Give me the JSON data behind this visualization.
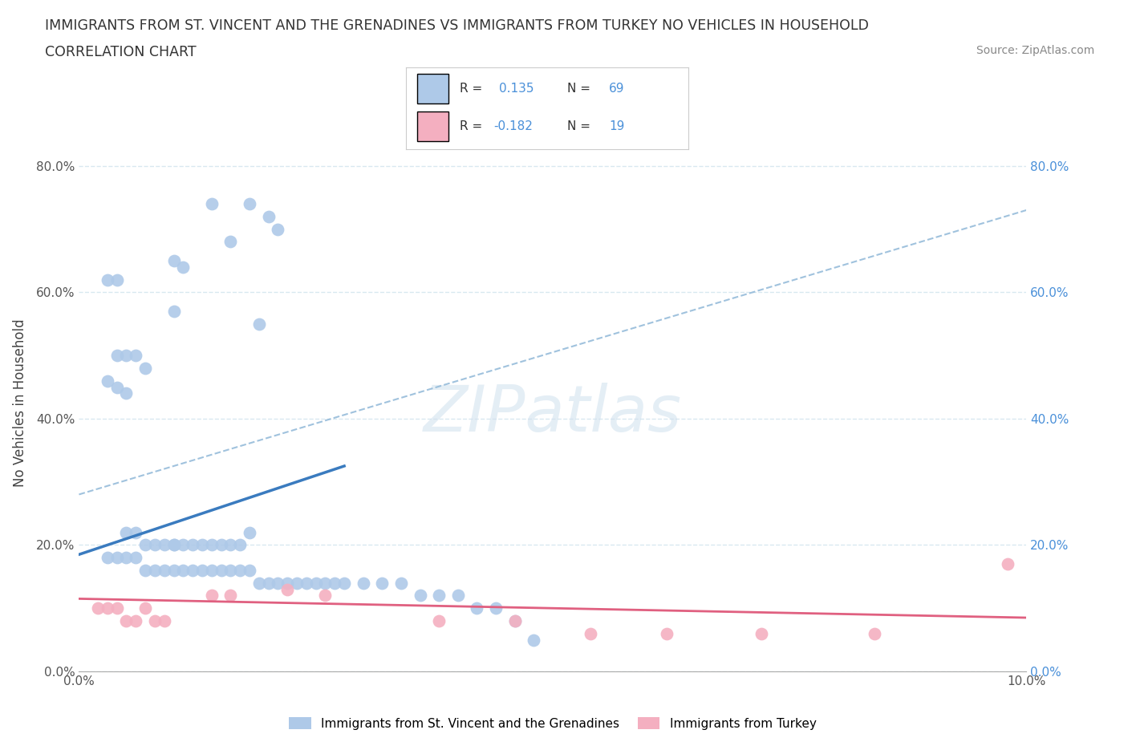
{
  "title_line1": "IMMIGRANTS FROM ST. VINCENT AND THE GRENADINES VS IMMIGRANTS FROM TURKEY NO VEHICLES IN HOUSEHOLD",
  "title_line2": "CORRELATION CHART",
  "source_text": "Source: ZipAtlas.com",
  "watermark": "ZIPatlas",
  "ylabel": "No Vehicles in Household",
  "xlim": [
    0.0,
    0.1
  ],
  "ylim": [
    0.0,
    0.85
  ],
  "blue_R": 0.135,
  "blue_N": 69,
  "pink_R": -0.182,
  "pink_N": 19,
  "blue_color": "#aec9e8",
  "pink_color": "#f4afc0",
  "blue_line_color": "#3a7bbf",
  "pink_line_color": "#e06080",
  "dash_line_color": "#90b8d8",
  "bg_color": "#ffffff",
  "grid_color": "#d8e8f0",
  "blue_scatter_x": [
    0.014,
    0.018,
    0.02,
    0.021,
    0.016,
    0.01,
    0.011,
    0.003,
    0.004,
    0.01,
    0.019,
    0.004,
    0.005,
    0.006,
    0.007,
    0.003,
    0.004,
    0.005,
    0.005,
    0.006,
    0.007,
    0.008,
    0.009,
    0.01,
    0.01,
    0.011,
    0.012,
    0.013,
    0.014,
    0.015,
    0.016,
    0.017,
    0.018,
    0.003,
    0.004,
    0.005,
    0.006,
    0.007,
    0.008,
    0.009,
    0.01,
    0.011,
    0.012,
    0.013,
    0.014,
    0.015,
    0.016,
    0.017,
    0.018,
    0.019,
    0.02,
    0.021,
    0.022,
    0.023,
    0.024,
    0.025,
    0.026,
    0.027,
    0.028,
    0.03,
    0.032,
    0.034,
    0.036,
    0.038,
    0.04,
    0.042,
    0.044,
    0.046,
    0.048
  ],
  "blue_scatter_y": [
    0.74,
    0.74,
    0.72,
    0.7,
    0.68,
    0.65,
    0.64,
    0.62,
    0.62,
    0.57,
    0.55,
    0.5,
    0.5,
    0.5,
    0.48,
    0.46,
    0.45,
    0.44,
    0.22,
    0.22,
    0.2,
    0.2,
    0.2,
    0.2,
    0.2,
    0.2,
    0.2,
    0.2,
    0.2,
    0.2,
    0.2,
    0.2,
    0.22,
    0.18,
    0.18,
    0.18,
    0.18,
    0.16,
    0.16,
    0.16,
    0.16,
    0.16,
    0.16,
    0.16,
    0.16,
    0.16,
    0.16,
    0.16,
    0.16,
    0.14,
    0.14,
    0.14,
    0.14,
    0.14,
    0.14,
    0.14,
    0.14,
    0.14,
    0.14,
    0.14,
    0.14,
    0.14,
    0.12,
    0.12,
    0.12,
    0.1,
    0.1,
    0.08,
    0.05
  ],
  "pink_scatter_x": [
    0.002,
    0.003,
    0.004,
    0.005,
    0.006,
    0.007,
    0.008,
    0.009,
    0.014,
    0.016,
    0.022,
    0.026,
    0.038,
    0.046,
    0.054,
    0.062,
    0.072,
    0.084,
    0.098
  ],
  "pink_scatter_y": [
    0.1,
    0.1,
    0.1,
    0.08,
    0.08,
    0.1,
    0.08,
    0.08,
    0.12,
    0.12,
    0.13,
    0.12,
    0.08,
    0.08,
    0.06,
    0.06,
    0.06,
    0.06,
    0.17
  ],
  "blue_line_x0": 0.0,
  "blue_line_y0": 0.185,
  "blue_line_x1": 0.028,
  "blue_line_y1": 0.325,
  "pink_line_x0": 0.0,
  "pink_line_y0": 0.115,
  "pink_line_x1": 0.1,
  "pink_line_y1": 0.085,
  "dash_line_x0": 0.0,
  "dash_line_y0": 0.28,
  "dash_line_x1": 0.1,
  "dash_line_y1": 0.73
}
